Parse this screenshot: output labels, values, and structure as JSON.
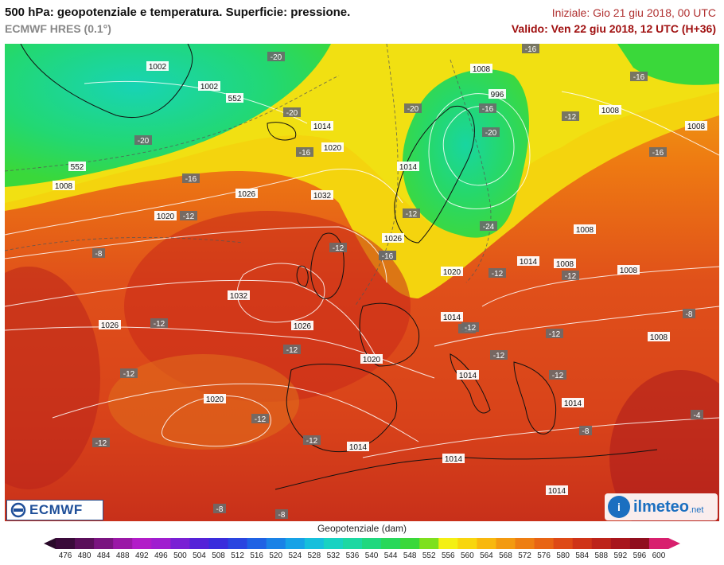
{
  "header": {
    "title": "500 hPa: geopotenziale e temperatura. Superficie: pressione.",
    "model": "ECMWF HRES (0.1°)",
    "init": "Iniziale: Gio 21 giu 2018, 00 UTC",
    "valid": "Valido: Ven 22 giu 2018, 12 UTC (H+36)"
  },
  "logos": {
    "ecmwf": "ECMWF",
    "ilmeteo": "ilmeteo",
    "ilmeteo_suffix": ".net"
  },
  "legend": {
    "title": "Geopotenziale (dam)",
    "ticks": [
      "476",
      "480",
      "484",
      "488",
      "492",
      "496",
      "500",
      "504",
      "508",
      "512",
      "516",
      "520",
      "524",
      "528",
      "532",
      "536",
      "540",
      "544",
      "548",
      "552",
      "556",
      "560",
      "564",
      "568",
      "572",
      "576",
      "580",
      "584",
      "588",
      "592",
      "596",
      "600"
    ],
    "colors": [
      "#3a0a3a",
      "#5a0f5a",
      "#7a1480",
      "#9a18a6",
      "#b21cc8",
      "#a01ecf",
      "#7a20d4",
      "#5522d8",
      "#3a2ddc",
      "#2a45e0",
      "#1f62e4",
      "#1a82e6",
      "#17a2e6",
      "#16bfdc",
      "#18d2c2",
      "#1cd8a2",
      "#20d87e",
      "#28d85a",
      "#3ad83a",
      "#7ee01e",
      "#f4f014",
      "#f8d60e",
      "#f8b80e",
      "#f39a10",
      "#ee7e12",
      "#e86414",
      "#de4a16",
      "#cf3418",
      "#bd241a",
      "#a8161c",
      "#900e1e",
      "#d8206e"
    ],
    "arrow_left_color": "#2a0a2a",
    "arrow_right_color": "#d8206e"
  },
  "map": {
    "temperature_labels": [
      "-20",
      "-20",
      "-20",
      "-20",
      "-20",
      "-16",
      "-16",
      "-16",
      "-16",
      "-16",
      "-16",
      "-16",
      "-16",
      "-12",
      "-12",
      "-12",
      "-12",
      "-12",
      "-12",
      "-12",
      "-12",
      "-12",
      "-12",
      "-12",
      "-12",
      "-12",
      "-12",
      "-12",
      "-12",
      "-12",
      "-24",
      "-8",
      "-8",
      "-8",
      "-8",
      "-8",
      "-4"
    ],
    "pressure_labels": [
      "1002",
      "1002",
      "1008",
      "1008",
      "1008",
      "1008",
      "1008",
      "1008",
      "1008",
      "1014",
      "1014",
      "1014",
      "1014",
      "1014",
      "1014",
      "1014",
      "1014",
      "1014",
      "1020",
      "1020",
      "1020",
      "1020",
      "1020",
      "1026",
      "1026",
      "1026",
      "1026",
      "1032",
      "1032",
      "1008",
      "552",
      "552",
      "996"
    ]
  }
}
